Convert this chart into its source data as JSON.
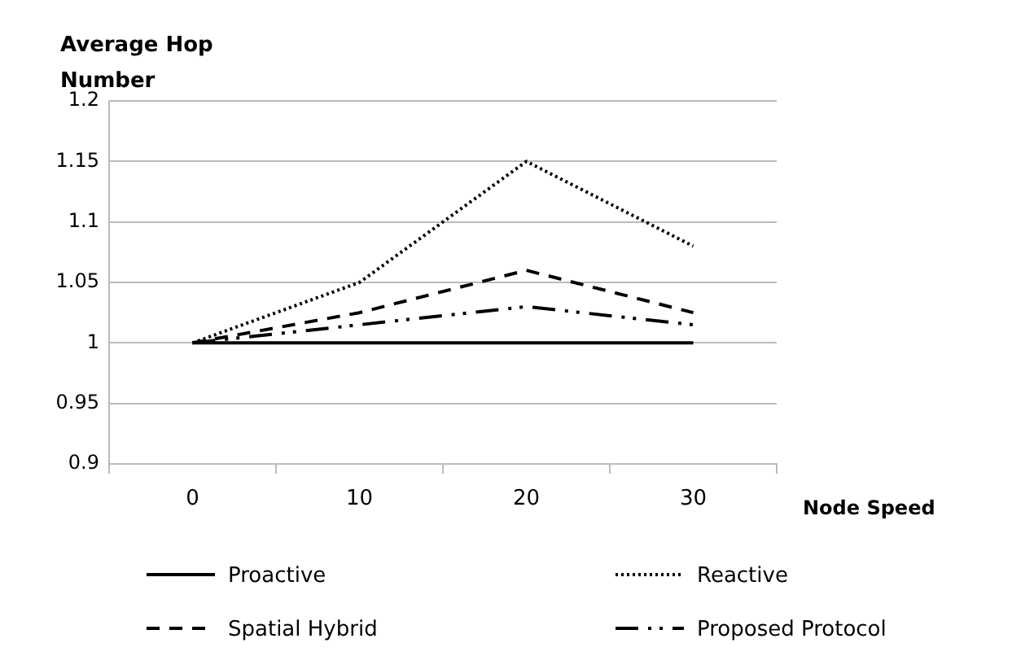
{
  "chart_data": {
    "type": "line",
    "ylabel": "Average Hop Number",
    "xlabel": "Node Speed",
    "categories": [
      "0",
      "10",
      "20",
      "30"
    ],
    "ylim": [
      0.9,
      1.2
    ],
    "yticks": [
      0.9,
      0.95,
      1,
      1.05,
      1.1,
      1.15,
      1.2
    ],
    "grid": "y",
    "legend": "bottom",
    "marker": "none",
    "series": [
      {
        "name": "Proactive",
        "color": "#000000",
        "line_style": "solid",
        "values": [
          1,
          1,
          1,
          1
        ]
      },
      {
        "name": "Reactive",
        "color": "#000000",
        "line_style": "dotted",
        "values": [
          1,
          1.05,
          1.15,
          1.08
        ]
      },
      {
        "name": "Spatial Hybrid",
        "color": "#000000",
        "line_style": "dashed",
        "values": [
          1,
          1.025,
          1.06,
          1.025
        ]
      },
      {
        "name": "Proposed Protocol",
        "color": "#000000",
        "line_style": "dashdot",
        "values": [
          1,
          1.015,
          1.03,
          1.015
        ]
      }
    ]
  }
}
